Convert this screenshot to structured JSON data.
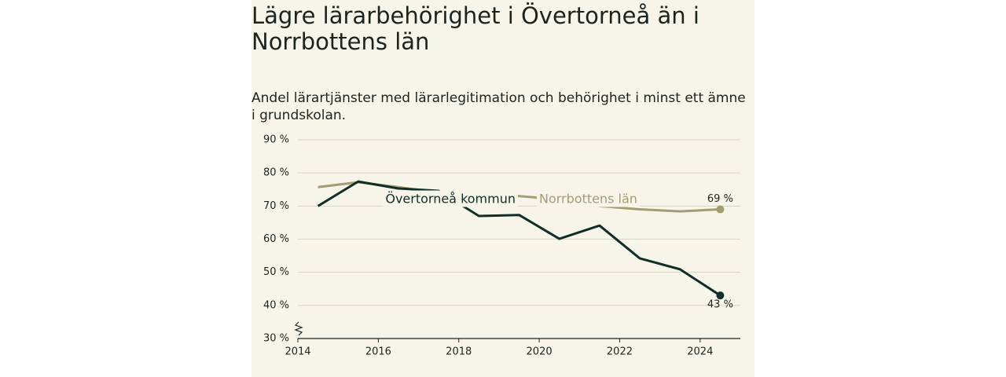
{
  "chart_data": {
    "type": "line",
    "title": "Lägre lärarbehörighet i Övertorneå än i Norrbottens län",
    "subtitle": "Andel lärartjänster med lärarlegitimation och behörighet i minst ett ämne i grundskolan.",
    "x": [
      2014.5,
      2015.5,
      2016.5,
      2017.5,
      2018.5,
      2019.5,
      2020.5,
      2021.5,
      2022.5,
      2023.5,
      2024.5
    ],
    "series": [
      {
        "name": "Norrbottens län",
        "color": "#a39d74",
        "values": [
          75.7,
          77.2,
          75.7,
          74,
          73,
          73,
          72,
          70,
          69,
          68.4,
          69
        ],
        "value_labels": [
          null,
          null,
          null,
          null,
          null,
          null,
          null,
          null,
          null,
          null,
          "69 %"
        ]
      },
      {
        "name": "Övertorneå kommun",
        "color": "#0f2f27",
        "values": [
          70,
          77.4,
          75.3,
          74.6,
          67,
          67.3,
          60.1,
          64.1,
          54.2,
          50.9,
          43
        ],
        "value_labels": [
          null,
          null,
          null,
          null,
          null,
          null,
          null,
          null,
          null,
          null,
          "43 %"
        ]
      }
    ],
    "xlim": [
      2014,
      2025
    ],
    "xticks": [
      2014,
      2016,
      2018,
      2020,
      2022,
      2024
    ],
    "ylim": [
      30,
      90
    ],
    "yticks": [
      {
        "value": 30,
        "label": "30 %"
      },
      {
        "value": 40,
        "label": "40 %"
      },
      {
        "value": 50,
        "label": "50 %"
      },
      {
        "value": 60,
        "label": "60 %"
      },
      {
        "value": 70,
        "label": "70 %"
      },
      {
        "value": 80,
        "label": "80 %"
      },
      {
        "value": 90,
        "label": "90 %"
      }
    ],
    "grid": true
  }
}
